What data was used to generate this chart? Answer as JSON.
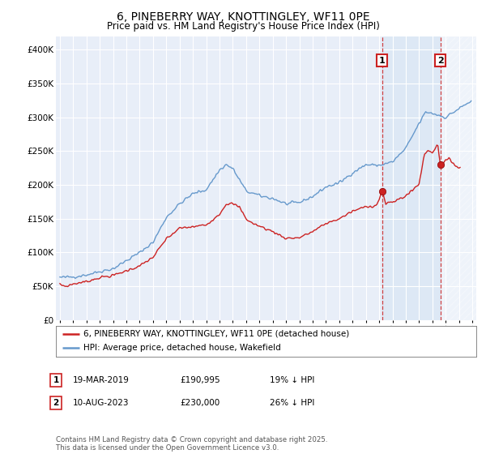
{
  "title": "6, PINEBERRY WAY, KNOTTINGLEY, WF11 0PE",
  "subtitle": "Price paid vs. HM Land Registry's House Price Index (HPI)",
  "title_fontsize": 10,
  "subtitle_fontsize": 8.5,
  "background_color": "#ffffff",
  "plot_bg_color": "#e8eef8",
  "grid_color": "#ffffff",
  "ylim": [
    0,
    420000
  ],
  "yticks": [
    0,
    50000,
    100000,
    150000,
    200000,
    250000,
    300000,
    350000,
    400000
  ],
  "ytick_labels": [
    "£0",
    "£50K",
    "£100K",
    "£150K",
    "£200K",
    "£250K",
    "£300K",
    "£350K",
    "£400K"
  ],
  "hpi_color": "#6699cc",
  "price_color": "#cc2222",
  "shade_color": "#dde8f5",
  "legend_label_red": "6, PINEBERRY WAY, KNOTTINGLEY, WF11 0PE (detached house)",
  "legend_label_blue": "HPI: Average price, detached house, Wakefield",
  "annotation1_label": "1",
  "annotation1_date": "19-MAR-2019",
  "annotation1_price": "£190,995",
  "annotation1_hpi": "19% ↓ HPI",
  "annotation2_label": "2",
  "annotation2_date": "10-AUG-2023",
  "annotation2_price": "£230,000",
  "annotation2_hpi": "26% ↓ HPI",
  "footer": "Contains HM Land Registry data © Crown copyright and database right 2025.\nThis data is licensed under the Open Government Licence v3.0.",
  "marker1_x": 2019.22,
  "marker1_y": 190995,
  "marker2_x": 2023.61,
  "marker2_y": 230000,
  "vline1_x": 2019.22,
  "vline2_x": 2023.61,
  "future_start_x": 2024.5,
  "xlim_left": 1994.7,
  "xlim_right": 2026.3
}
